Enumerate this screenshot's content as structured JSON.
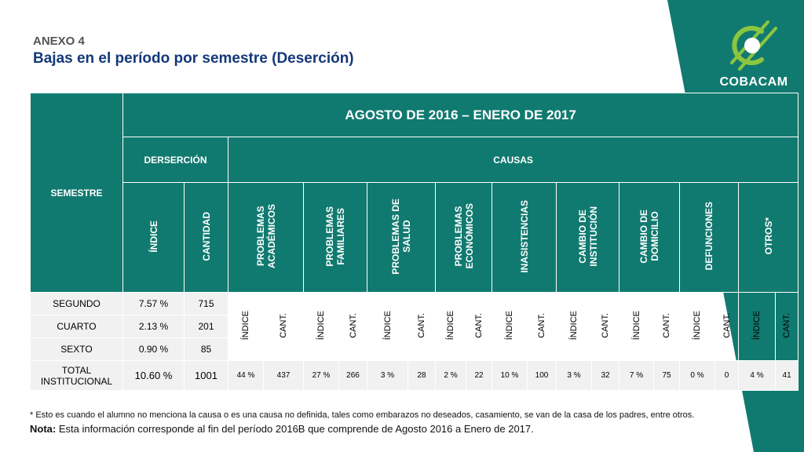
{
  "header": {
    "annex": "ANEXO 4",
    "title": "Bajas en el período por semestre (Deserción)",
    "brand": "COBACAM"
  },
  "colors": {
    "teal": "#117a70",
    "title_blue": "#14387a",
    "logo_green": "#8cc63f"
  },
  "table": {
    "semestre_header": "SEMESTRE",
    "period_header": "AGOSTO DE 2016 – ENERO DE 2017",
    "desercion_header": "DERSERCIÓN",
    "causas_header": "CAUSAS",
    "indice_label": "ÍNDICE",
    "cantidad_label": "CANTIDAD",
    "causes": [
      {
        "line1": "PROBLEMAS",
        "line2": "ACADÉMICOS"
      },
      {
        "line1": "PROBLEMAS",
        "line2": "FAMILIARES"
      },
      {
        "line1": "PROBLEMAS DE",
        "line2": "SALUD"
      },
      {
        "line1": "PROBLEMAS",
        "line2": "ECONÓMICOS"
      },
      {
        "line1": "INASISTENCIAS",
        "line2": ""
      },
      {
        "line1": "CAMBIO DE",
        "line2": "INSTITUCIÓN"
      },
      {
        "line1": "CAMBIO DE",
        "line2": "DOMICILIO"
      },
      {
        "line1": "DEFUNCIONES",
        "line2": ""
      },
      {
        "line1": "OTROS*",
        "line2": ""
      }
    ],
    "sub_indice": "ÍNDICE",
    "sub_cant": "CANT.",
    "rows": [
      {
        "semestre": "SEGUNDO",
        "indice": "7.57 %",
        "cantidad": "715"
      },
      {
        "semestre": "CUARTO",
        "indice": "2.13 %",
        "cantidad": "201"
      },
      {
        "semestre": "SEXTO",
        "indice": "0.90 %",
        "cantidad": "85"
      }
    ],
    "total": {
      "line1": "TOTAL",
      "line2": "INSTITUCIONAL",
      "indice": "10.60 %",
      "cantidad": "1001",
      "cause_values": [
        [
          "44 %",
          "437"
        ],
        [
          "27 %",
          "266"
        ],
        [
          "3 %",
          "28"
        ],
        [
          "2 %",
          "22"
        ],
        [
          "10 %",
          "100"
        ],
        [
          "3 %",
          "32"
        ],
        [
          "7 %",
          "75"
        ],
        [
          "0 %",
          "0"
        ],
        [
          "4 %",
          "41"
        ]
      ]
    }
  },
  "footer": {
    "note_star": "* Esto es cuando el alumno no menciona la causa o es una causa no definida, tales como embarazos no deseados, casamiento, se van de la casa de los padres, entre otros.",
    "nota_label": "Nota:",
    "nota_text": " Esta información corresponde al fin del período 2016B que comprende de Agosto 2016 a Enero de 2017."
  }
}
